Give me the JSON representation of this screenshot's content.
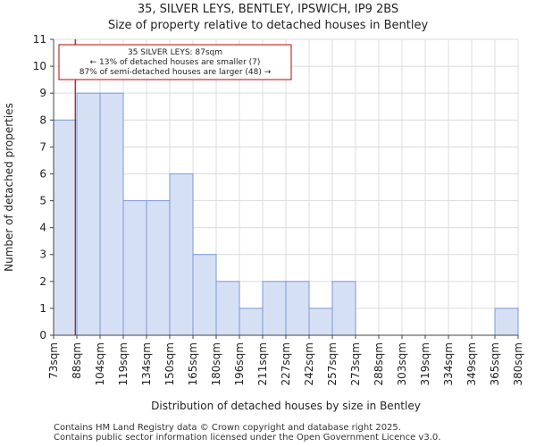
{
  "chart_data": {
    "type": "bar",
    "title": "35, SILVER LEYS, BENTLEY, IPSWICH, IP9 2BS",
    "subtitle": "Size of property relative to detached houses in Bentley",
    "xlabel": "Distribution of detached houses by size in Bentley",
    "ylabel": "Number of detached properties",
    "bin_edges": [
      73,
      88,
      104,
      119,
      134,
      150,
      165,
      180,
      196,
      211,
      227,
      242,
      257,
      273,
      288,
      303,
      319,
      334,
      349,
      365,
      380
    ],
    "tick_labels": [
      "73sqm",
      "88sqm",
      "104sqm",
      "119sqm",
      "134sqm",
      "150sqm",
      "165sqm",
      "180sqm",
      "196sqm",
      "211sqm",
      "227sqm",
      "242sqm",
      "257sqm",
      "273sqm",
      "288sqm",
      "303sqm",
      "319sqm",
      "334sqm",
      "349sqm",
      "365sqm",
      "380sqm"
    ],
    "values": [
      8,
      9,
      9,
      5,
      5,
      6,
      3,
      2,
      1,
      2,
      2,
      1,
      2,
      0,
      0,
      0,
      0,
      0,
      0,
      1
    ],
    "ylim": [
      0,
      11
    ],
    "yticks": [
      0,
      1,
      2,
      3,
      4,
      5,
      6,
      7,
      8,
      9,
      10,
      11
    ],
    "grid": true,
    "bar_color": "#d6e0f5",
    "bar_edge_color": "#7a9ad6",
    "marker": {
      "value": 87,
      "color": "#c00000"
    },
    "annotation": {
      "lines": [
        "35 SILVER LEYS: 87sqm",
        "← 13% of detached houses are smaller (7)",
        "87% of semi-detached houses are larger (48) →"
      ],
      "border_color": "#c00000"
    }
  },
  "footer": {
    "line1": "Contains HM Land Registry data © Crown copyright and database right 2025.",
    "line2": "Contains public sector information licensed under the Open Government Licence v3.0."
  }
}
